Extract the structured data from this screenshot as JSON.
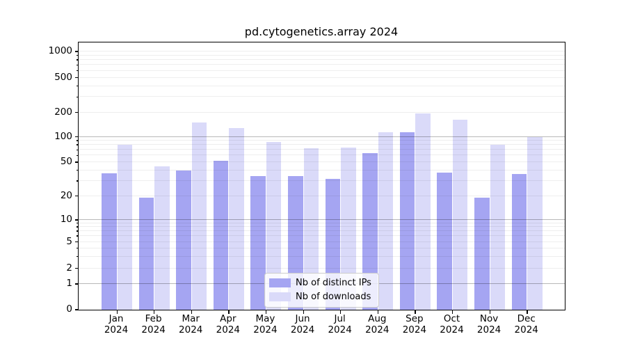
{
  "chart_data": {
    "type": "bar",
    "title": "pd.cytogenetics.array 2024",
    "categories": [
      "Jan 2024",
      "Feb 2024",
      "Mar 2024",
      "Apr 2024",
      "May 2024",
      "Jun 2024",
      "Jul 2024",
      "Aug 2024",
      "Sep 2024",
      "Oct 2024",
      "Nov 2024",
      "Dec 2024"
    ],
    "series": [
      {
        "name": "Nb of distinct IPs",
        "color": "#a5a5f2",
        "values": [
          37,
          19,
          40,
          52,
          34,
          34,
          32,
          64,
          114,
          38,
          19,
          36
        ]
      },
      {
        "name": "Nb of downloads",
        "color": "#dadaf9",
        "values": [
          81,
          45,
          149,
          127,
          86,
          73,
          74,
          113,
          193,
          162,
          81,
          100
        ]
      }
    ],
    "xlabel": "",
    "ylabel": "",
    "yscale": "symlog",
    "yticks": [
      0,
      1,
      2,
      5,
      10,
      20,
      50,
      100,
      200,
      500,
      1000
    ],
    "ylim": [
      0,
      1200
    ],
    "grid": {
      "horizontal": true,
      "major_at": [
        1,
        10,
        100
      ],
      "minor": true
    },
    "legend": {
      "position": "bottom-center-inside",
      "entries": [
        "Nb of distinct IPs",
        "Nb of downloads"
      ]
    }
  }
}
